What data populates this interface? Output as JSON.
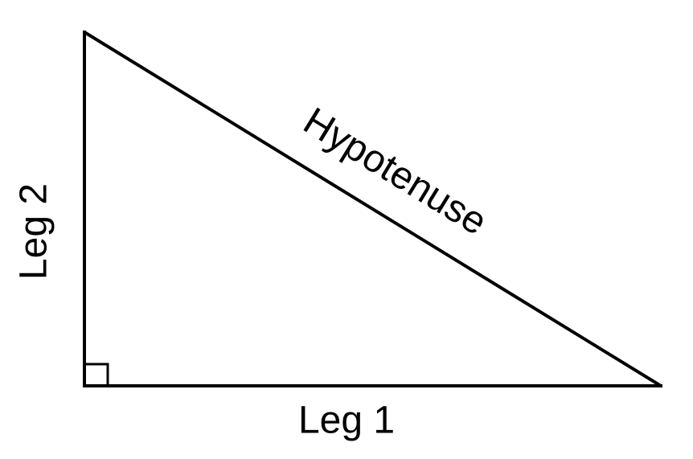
{
  "diagram": {
    "type": "right-triangle",
    "labels": {
      "hypotenuse": "Hypotenuse",
      "leg_vertical": "Leg 2",
      "leg_horizontal": "Leg 1"
    },
    "right_angle_marker": true,
    "colors": {
      "stroke": "#000000",
      "background": "#ffffff"
    }
  }
}
